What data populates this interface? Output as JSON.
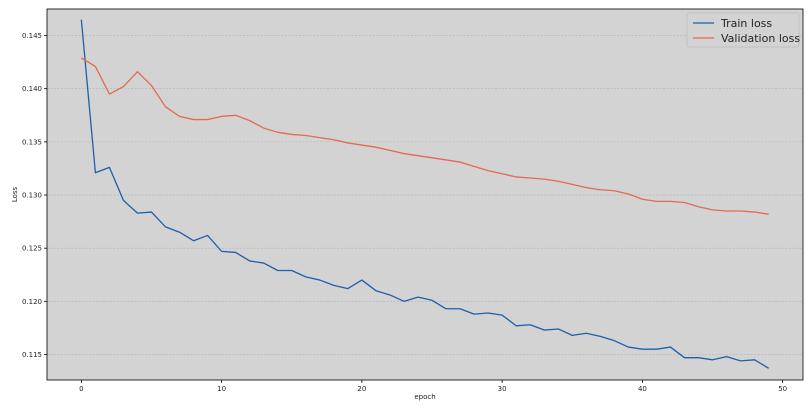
{
  "chart_data": {
    "type": "line",
    "title": "",
    "xlabel": "epoch",
    "ylabel": "Loss",
    "xlim": [
      -2.45,
      51.45
    ],
    "ylim": [
      0.1126,
      0.1475
    ],
    "xticks": [
      0,
      10,
      20,
      30,
      40,
      50
    ],
    "yticks": [
      0.115,
      0.12,
      0.125,
      0.13,
      0.135,
      0.14,
      0.145
    ],
    "ytick_labels": [
      "0.115",
      "0.120",
      "0.125",
      "0.130",
      "0.135",
      "0.140",
      "0.145"
    ],
    "grid": "horizontal",
    "legend_position": "top-right",
    "background": "#d3d3d3",
    "series": [
      {
        "name": "Train loss",
        "color": "#1f5fa8",
        "x": [
          0,
          1,
          2,
          3,
          4,
          5,
          6,
          7,
          8,
          9,
          10,
          11,
          12,
          13,
          14,
          15,
          16,
          17,
          18,
          19,
          20,
          21,
          22,
          23,
          24,
          25,
          26,
          27,
          28,
          29,
          30,
          31,
          32,
          33,
          34,
          35,
          36,
          37,
          38,
          39,
          40,
          41,
          42,
          43,
          44,
          45,
          46,
          47,
          48,
          49
        ],
        "values": [
          0.1465,
          0.1321,
          0.1326,
          0.1295,
          0.1283,
          0.1284,
          0.127,
          0.1265,
          0.1257,
          0.1262,
          0.1247,
          0.1246,
          0.1238,
          0.1236,
          0.1229,
          0.1229,
          0.1223,
          0.122,
          0.1215,
          0.1212,
          0.122,
          0.121,
          0.1206,
          0.12,
          0.1204,
          0.1201,
          0.1193,
          0.1193,
          0.1188,
          0.1189,
          0.1187,
          0.1177,
          0.1178,
          0.1173,
          0.1174,
          0.1168,
          0.117,
          0.1167,
          0.1163,
          0.1157,
          0.1155,
          0.1155,
          0.1157,
          0.1147,
          0.1147,
          0.1145,
          0.1148,
          0.1144,
          0.1145,
          0.1137
        ]
      },
      {
        "name": "Validation loss",
        "color": "#e06b4f",
        "x": [
          0,
          1,
          2,
          3,
          4,
          5,
          6,
          7,
          8,
          9,
          10,
          11,
          12,
          13,
          14,
          15,
          16,
          17,
          18,
          19,
          20,
          21,
          22,
          23,
          24,
          25,
          26,
          27,
          28,
          29,
          30,
          31,
          32,
          33,
          34,
          35,
          36,
          37,
          38,
          39,
          40,
          41,
          42,
          43,
          44,
          45,
          46,
          47,
          48,
          49
        ],
        "values": [
          0.1429,
          0.1421,
          0.1395,
          0.1402,
          0.1416,
          0.1403,
          0.1383,
          0.1374,
          0.1371,
          0.1371,
          0.1374,
          0.1375,
          0.137,
          0.1363,
          0.1359,
          0.1357,
          0.1356,
          0.1354,
          0.1352,
          0.1349,
          0.1347,
          0.1345,
          0.1342,
          0.1339,
          0.1337,
          0.1335,
          0.1333,
          0.1331,
          0.1327,
          0.1323,
          0.132,
          0.1317,
          0.1316,
          0.1315,
          0.1313,
          0.131,
          0.1307,
          0.1305,
          0.1304,
          0.1301,
          0.1296,
          0.1294,
          0.1294,
          0.1293,
          0.1289,
          0.1286,
          0.1285,
          0.1285,
          0.1284,
          0.1282
        ]
      }
    ]
  }
}
